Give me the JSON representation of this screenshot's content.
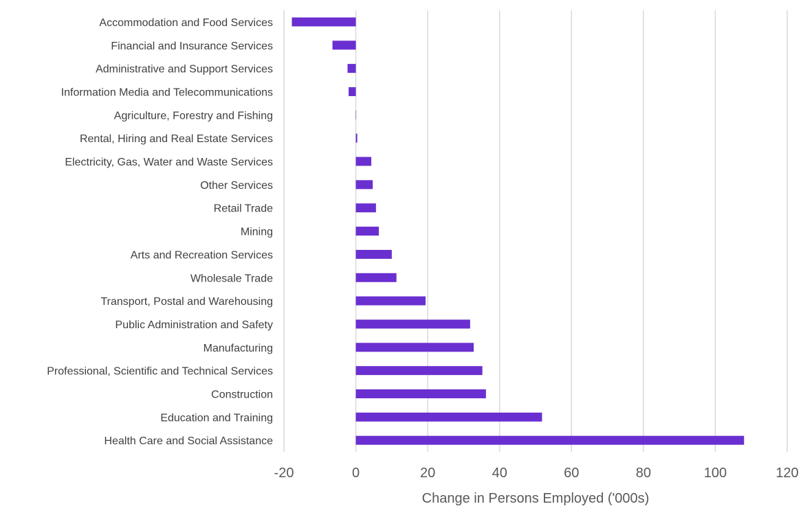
{
  "chart_data": {
    "type": "bar",
    "orientation": "horizontal",
    "title": "",
    "xlabel": "Change in Persons Employed ('000s)",
    "ylabel": "",
    "xlim": [
      -20,
      120
    ],
    "xticks": [
      -20,
      0,
      20,
      40,
      60,
      80,
      100,
      120
    ],
    "xtick_labels": [
      "-20",
      "0",
      "20",
      "40",
      "60",
      "80",
      "100",
      "120"
    ],
    "grid": "vertical",
    "legend": "none",
    "bar_color": "#6a2fd0",
    "grid_color": "#d9d9d9",
    "categories": [
      "Accommodation and Food Services",
      "Financial and Insurance Services",
      "Administrative and Support Services",
      "Information Media and Telecommunications",
      "Agriculture, Forestry and Fishing",
      "Rental, Hiring and Real Estate Services",
      "Electricity, Gas, Water and Waste Services",
      "Other Services",
      "Retail Trade",
      "Mining",
      "Arts and Recreation Services",
      "Wholesale Trade",
      "Transport, Postal and Warehousing",
      "Public Administration and Safety",
      "Manufacturing",
      "Professional, Scientific and Technical Services",
      "Construction",
      "Education and Training",
      "Health Care and Social Assistance"
    ],
    "values": [
      -17.8,
      -6.5,
      -2.3,
      -2.0,
      0.0,
      0.4,
      4.3,
      4.7,
      5.6,
      6.4,
      10.0,
      11.3,
      19.4,
      31.8,
      32.8,
      35.2,
      36.2,
      51.8,
      108.0
    ]
  }
}
